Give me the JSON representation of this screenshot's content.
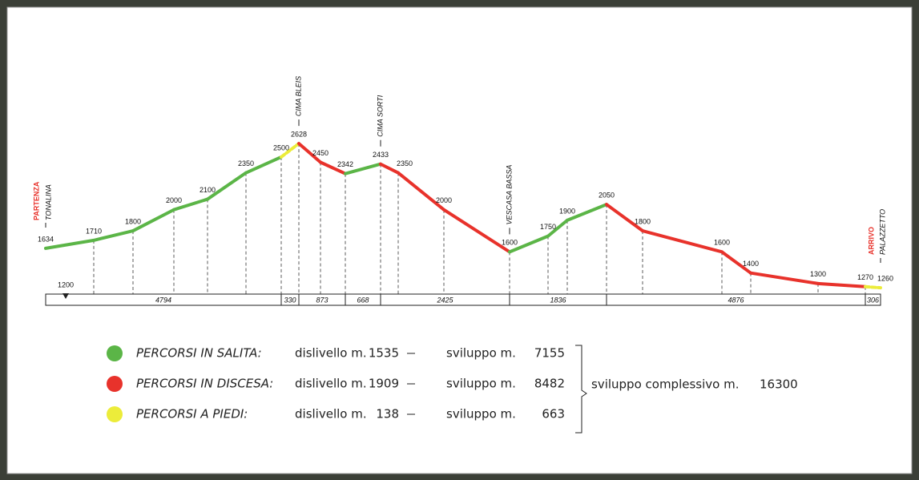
{
  "profile": {
    "start": {
      "label": "PARTENZA",
      "place": "TONALINA"
    },
    "end": {
      "label": "ARRIVO",
      "place": "PALAZZETTO"
    },
    "peaks": [
      {
        "name": "CIMA BLEIS"
      },
      {
        "name": "CIMA SORTI"
      },
      {
        "name": "VESCASA BASSA"
      }
    ],
    "base": 1200,
    "points": [
      1634,
      1710,
      1800,
      2000,
      2100,
      2350,
      2500,
      2628,
      2450,
      2342,
      2433,
      2350,
      2000,
      1600,
      1750,
      1900,
      2050,
      1800,
      1600,
      1400,
      1300,
      1270,
      1260
    ],
    "distances": [
      4794,
      330,
      873,
      668,
      2425,
      1836,
      4876,
      306
    ]
  },
  "legend": [
    {
      "label": "PERCORSI IN SALITA:",
      "color": "#5bb547",
      "climb_text": "dislivello m.",
      "climb": 1535,
      "length_text": "sviluppo m.",
      "length": 7155
    },
    {
      "label": "PERCORSI IN DISCESA:",
      "color": "#e8322b",
      "climb_text": "dislivello m.",
      "climb": 1909,
      "length_text": "sviluppo m.",
      "length": 8482
    },
    {
      "label": "PERCORSI A PIEDI:",
      "color": "#ecec3a",
      "climb_text": "dislivello m.",
      "climb": 138,
      "length_text": "sviluppo m.",
      "length": 663
    }
  ],
  "total": {
    "text": "sviluppo complessivo m.",
    "value": 16300
  }
}
